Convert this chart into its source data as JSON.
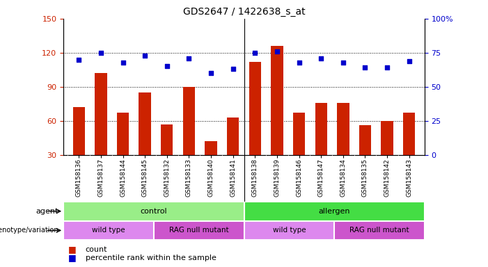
{
  "title": "GDS2647 / 1422638_s_at",
  "samples": [
    "GSM158136",
    "GSM158137",
    "GSM158144",
    "GSM158145",
    "GSM158132",
    "GSM158133",
    "GSM158140",
    "GSM158141",
    "GSM158138",
    "GSM158139",
    "GSM158146",
    "GSM158147",
    "GSM158134",
    "GSM158135",
    "GSM158142",
    "GSM158143"
  ],
  "counts": [
    72,
    102,
    67,
    85,
    57,
    90,
    42,
    63,
    112,
    126,
    67,
    76,
    76,
    56,
    60,
    67
  ],
  "percentiles": [
    70,
    75,
    68,
    73,
    65,
    71,
    60,
    63,
    75,
    76,
    68,
    71,
    68,
    64,
    64,
    69
  ],
  "ylim_left": [
    30,
    150
  ],
  "ylim_right": [
    0,
    100
  ],
  "yticks_left": [
    30,
    60,
    90,
    120,
    150
  ],
  "yticks_right": [
    0,
    25,
    50,
    75,
    100
  ],
  "bar_color": "#cc2200",
  "dot_color": "#0000cc",
  "agent_groups": [
    {
      "label": "control",
      "start": 0,
      "end": 8,
      "color": "#99ee88"
    },
    {
      "label": "allergen",
      "start": 8,
      "end": 16,
      "color": "#44dd44"
    }
  ],
  "genotype_groups": [
    {
      "label": "wild type",
      "start": 0,
      "end": 4,
      "color": "#dd88ee"
    },
    {
      "label": "RAG null mutant",
      "start": 4,
      "end": 8,
      "color": "#cc55cc"
    },
    {
      "label": "wild type",
      "start": 8,
      "end": 12,
      "color": "#dd88ee"
    },
    {
      "label": "RAG null mutant",
      "start": 12,
      "end": 16,
      "color": "#cc55cc"
    }
  ],
  "xticklabel_fontsize": 6.5,
  "title_fontsize": 10,
  "ylabel_left_color": "#cc2200",
  "ylabel_right_color": "#0000cc"
}
